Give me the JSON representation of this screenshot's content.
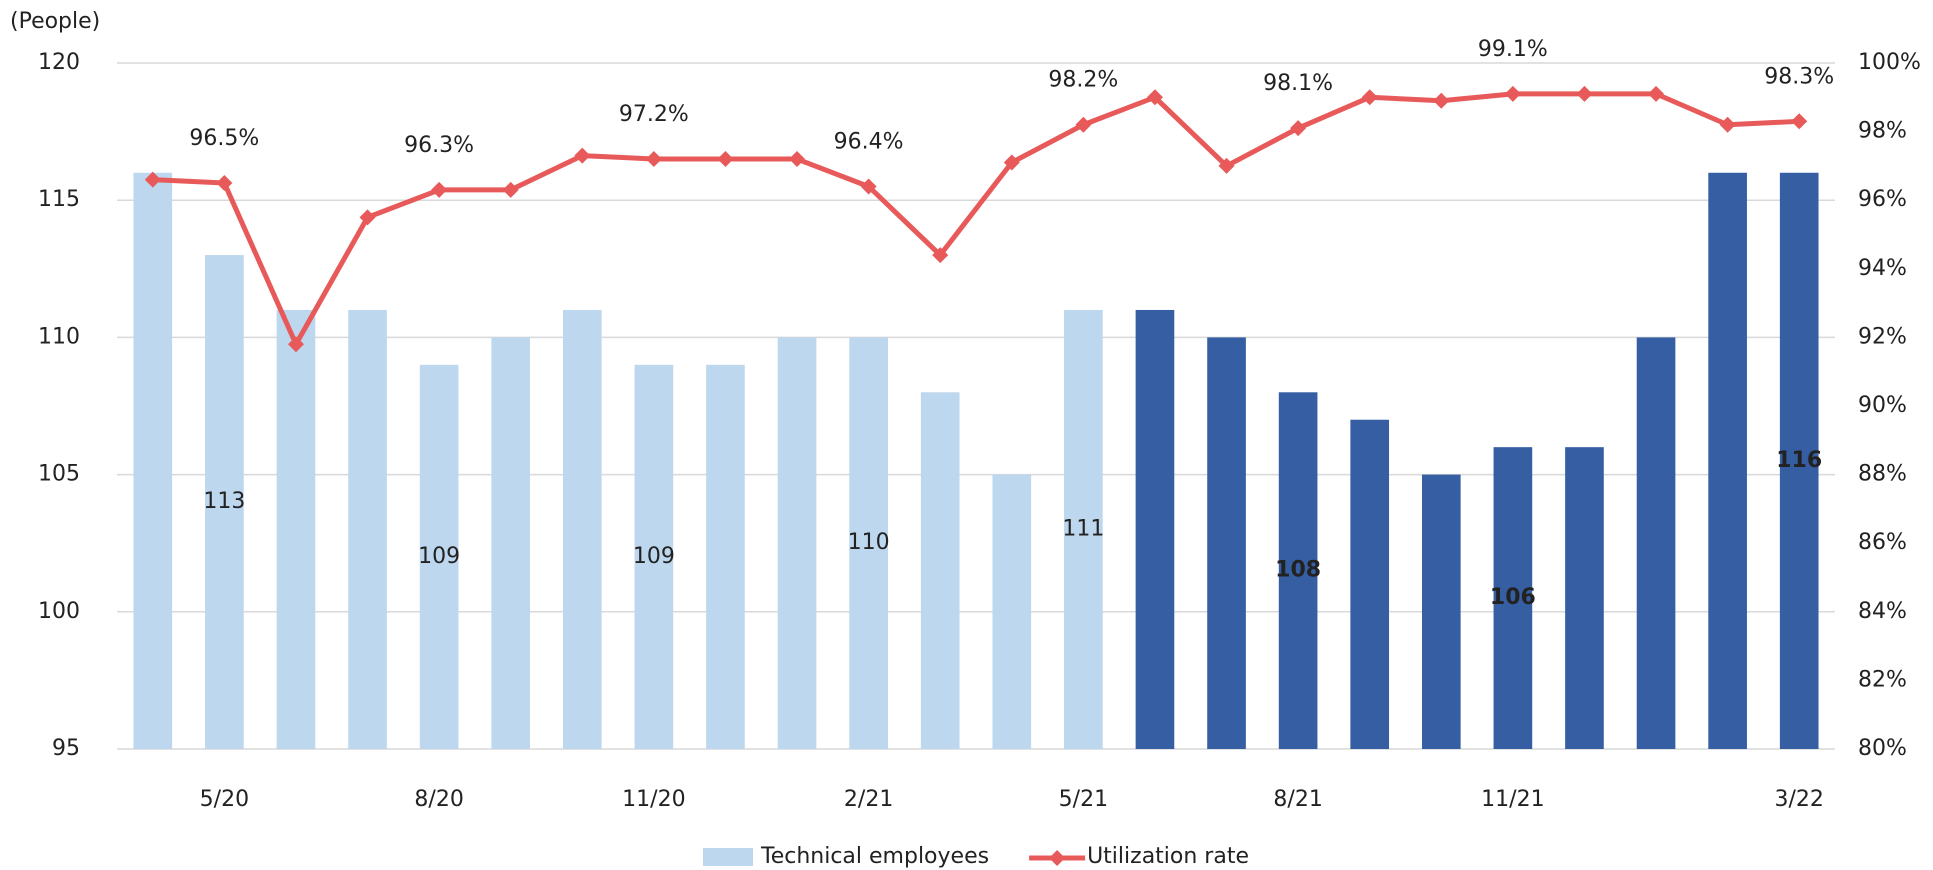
{
  "chart_data": {
    "type": "bar-line",
    "y_axis_label": "(People)",
    "categories": [
      null,
      "5/20",
      null,
      null,
      "8/20",
      null,
      null,
      "11/20",
      null,
      null,
      "2/21",
      null,
      null,
      "5/21",
      null,
      null,
      "8/21",
      null,
      null,
      "11/21",
      null,
      null,
      null,
      "3/22"
    ],
    "series": [
      {
        "name": "Technical employees",
        "type": "bar",
        "color": "#bdd7ee",
        "colors": [
          "#bdd7ee",
          "#bdd7ee",
          "#bdd7ee",
          "#bdd7ee",
          "#bdd7ee",
          "#bdd7ee",
          "#bdd7ee",
          "#bdd7ee",
          "#bdd7ee",
          "#bdd7ee",
          "#bdd7ee",
          "#bdd7ee",
          "#bdd7ee",
          "#bdd7ee",
          "#365fa3",
          "#365fa3",
          "#365fa3",
          "#365fa3",
          "#365fa3",
          "#365fa3",
          "#365fa3",
          "#365fa3",
          "#365fa3",
          "#365fa3"
        ],
        "values": [
          116,
          113,
          111,
          111,
          109,
          110,
          111,
          109,
          109,
          110,
          110,
          108,
          105,
          111,
          111,
          110,
          108,
          107,
          105,
          106,
          106,
          110,
          116,
          116
        ]
      },
      {
        "name": "Utilization rate",
        "type": "line",
        "axis": "y2",
        "color": "#e85a5a",
        "values": [
          96.6,
          96.5,
          91.8,
          95.5,
          96.3,
          96.3,
          97.3,
          97.2,
          97.2,
          97.2,
          96.4,
          94.4,
          97.1,
          98.2,
          99.0,
          97.0,
          98.1,
          99.0,
          98.9,
          99.1,
          99.1,
          99.1,
          98.2,
          98.3
        ],
        "value_labels": [
          null,
          "96.5%",
          null,
          null,
          "96.3%",
          null,
          null,
          "97.2%",
          null,
          null,
          "96.4%",
          null,
          null,
          "98.2%",
          null,
          null,
          "98.1%",
          null,
          null,
          "99.1%",
          null,
          null,
          null,
          "98.3%"
        ]
      }
    ],
    "ylim": [
      95,
      120
    ],
    "yticks": [
      95,
      100,
      105,
      110,
      115,
      120
    ],
    "y2lim": [
      80,
      100
    ],
    "y2ticks": [
      {
        "value": 80,
        "label": "80%"
      },
      {
        "value": 82,
        "label": "82%"
      },
      {
        "value": 84,
        "label": "84%"
      },
      {
        "value": 86,
        "label": "86%"
      },
      {
        "value": 88,
        "label": "88%"
      },
      {
        "value": 90,
        "label": "90%"
      },
      {
        "value": 92,
        "label": "92%"
      },
      {
        "value": 94,
        "label": "94%"
      },
      {
        "value": 96,
        "label": "96%"
      },
      {
        "value": 98,
        "label": "98%"
      },
      {
        "value": 100,
        "label": "100%"
      }
    ],
    "grid": true
  }
}
